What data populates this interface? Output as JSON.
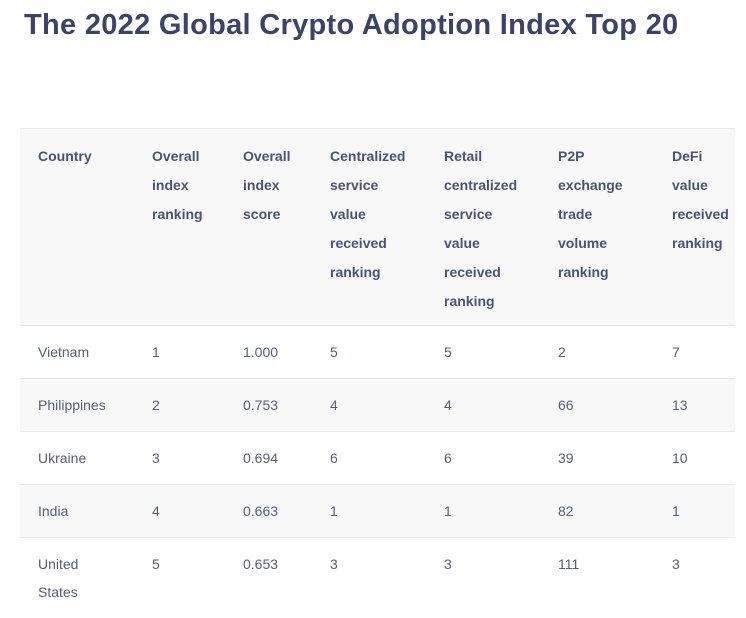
{
  "page": {
    "title": "The 2022 Global Crypto Adoption Index Top 20"
  },
  "table": {
    "header": [
      "Country",
      "Overall\nindex\nranking",
      "Overall\nindex\nscore",
      "Centralized\nservice\nvalue\nreceived\nranking",
      "Retail\ncentralized\nservice\nvalue\nreceived\nranking",
      "P2P\nexchange\ntrade\nvolume\nranking",
      "DeFi\nvalue\nreceived\nranking"
    ],
    "rows": [
      {
        "country": "Vietnam",
        "cells": [
          "1",
          "1.000",
          "5",
          "5",
          "2",
          "7"
        ]
      },
      {
        "country": "Philippines",
        "cells": [
          "2",
          "0.753",
          "4",
          "4",
          "66",
          "13"
        ]
      },
      {
        "country": "Ukraine",
        "cells": [
          "3",
          "0.694",
          "6",
          "6",
          "39",
          "10"
        ]
      },
      {
        "country": "India",
        "cells": [
          "4",
          "0.663",
          "1",
          "1",
          "82",
          "1"
        ]
      },
      {
        "country": "United States",
        "cells": [
          "5",
          "0.653",
          "3",
          "3",
          "111",
          "3"
        ]
      }
    ]
  },
  "chart_data": {
    "type": "table",
    "title": "The 2022 Global Crypto Adoption Index Top 20",
    "columns": [
      "Country",
      "Overall index ranking",
      "Overall index score",
      "Centralized service value received ranking",
      "Retail centralized service value received ranking",
      "P2P exchange trade volume ranking",
      "DeFi value received ranking"
    ],
    "rows": [
      [
        "Vietnam",
        1,
        1.0,
        5,
        5,
        2,
        7
      ],
      [
        "Philippines",
        2,
        0.753,
        4,
        4,
        66,
        13
      ],
      [
        "Ukraine",
        3,
        0.694,
        6,
        6,
        39,
        10
      ],
      [
        "India",
        4,
        0.663,
        1,
        1,
        82,
        1
      ],
      [
        "United States",
        5,
        0.653,
        3,
        3,
        111,
        3
      ]
    ],
    "layout": {
      "striped_rows": [
        2,
        4
      ],
      "header_background": "#f8f8f9",
      "grid": "horizontal-dividers"
    }
  },
  "colors": {
    "title_text": "#3d4366",
    "header_text": "#4b5370",
    "body_text": "#575d72",
    "stripe_background": "#f8f8f9",
    "divider": "#e9e9ec",
    "page_background": "#ffffff"
  }
}
